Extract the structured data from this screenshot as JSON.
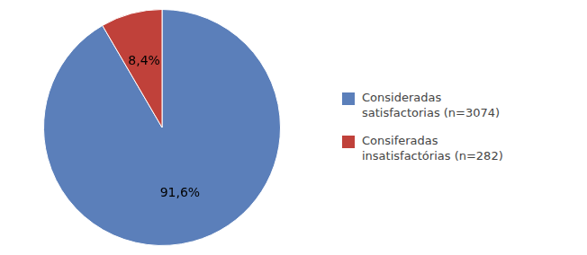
{
  "chart_data": {
    "type": "pie",
    "categories": [
      "Consideradas\nsatisfactorias (n=3074)",
      "Consiferadas\ninsatisfactórias (n=282)"
    ],
    "values": [
      91.6,
      8.4
    ],
    "value_labels": [
      "91,6%",
      "8,4%"
    ],
    "colors": [
      "#5b7fba",
      "#c0413a"
    ],
    "data_labels": true,
    "legend": "right"
  }
}
